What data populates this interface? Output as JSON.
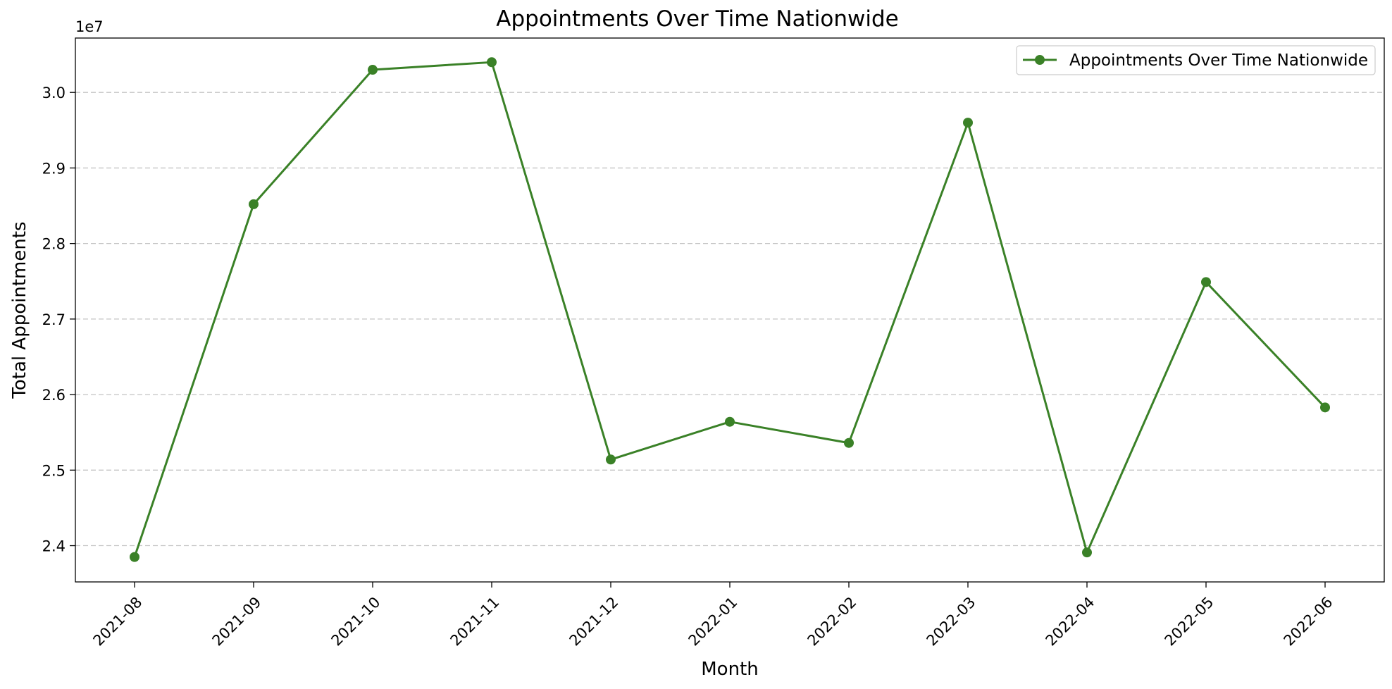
{
  "chart_data": {
    "type": "line",
    "title": "Appointments Over Time Nationwide",
    "xlabel": "Month",
    "ylabel": "Total Appointments",
    "y_offset_label": "1e7",
    "categories": [
      "2021-08",
      "2021-09",
      "2021-10",
      "2021-11",
      "2021-12",
      "2022-01",
      "2022-02",
      "2022-03",
      "2022-04",
      "2022-05",
      "2022-06"
    ],
    "series": [
      {
        "name": "Appointments Over Time Nationwide",
        "color": "#3a8127",
        "values": [
          23850000,
          28520000,
          30300000,
          30400000,
          25140000,
          25640000,
          25360000,
          29600000,
          23910000,
          27490000,
          25830000
        ]
      }
    ],
    "yticks": [
      24000000,
      25000000,
      26000000,
      27000000,
      28000000,
      29000000,
      30000000
    ],
    "ytick_labels": [
      "2.4",
      "2.5",
      "2.6",
      "2.7",
      "2.8",
      "2.9",
      "3.0"
    ],
    "ylim": [
      23520000,
      30720000
    ],
    "grid": "y-dashed",
    "legend_position": "top-right"
  }
}
